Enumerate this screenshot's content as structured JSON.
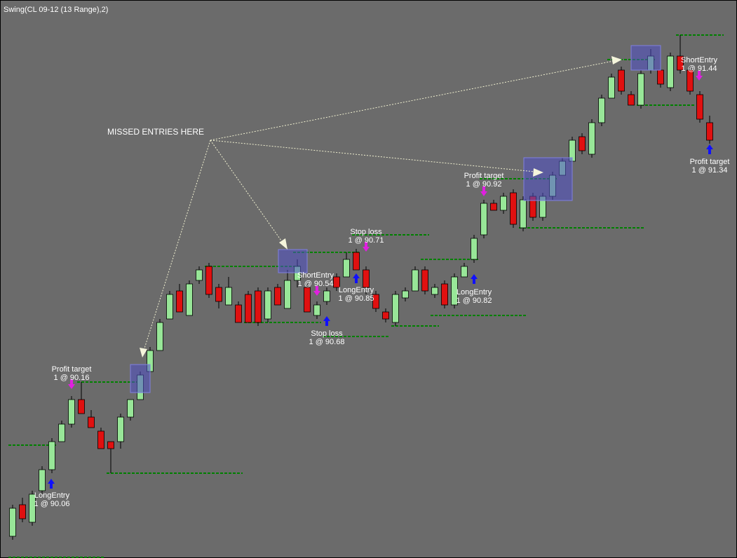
{
  "chart_data": {
    "type": "candlestick",
    "title": "Swing(CL 09-12 (13 Range),2)",
    "annotation": "MISSED ENTRIES HERE",
    "up_color": "#98e698",
    "down_color": "#e01010",
    "level_color": "#008000",
    "ylim": [
      89.968,
      91.56
    ],
    "open": [
      90.03,
      90.12,
      90.07,
      90.16,
      90.22,
      90.3,
      90.35,
      90.42,
      90.37,
      90.33,
      90.3,
      90.3,
      90.37,
      90.42,
      90.5,
      90.56,
      90.65,
      90.73,
      90.66,
      90.76,
      90.8,
      90.74,
      90.69,
      90.69,
      90.72,
      90.73,
      90.65,
      90.74,
      90.68,
      90.76,
      90.74,
      90.66,
      90.7,
      90.77,
      90.77,
      90.84,
      90.79,
      90.72,
      90.67,
      90.64,
      90.71,
      90.73,
      90.79,
      90.72,
      90.75,
      90.69,
      90.77,
      90.82,
      90.89,
      90.98,
      90.96,
      91.01,
      90.91,
      91.0,
      90.94,
      91.0,
      91.06,
      91.1,
      91.17,
      91.12,
      91.21,
      91.28,
      91.36,
      91.29,
      91.26,
      91.36,
      91.36,
      91.31,
      91.4,
      91.36,
      91.29,
      91.21
    ],
    "high": [
      90.12,
      90.14,
      90.16,
      90.23,
      90.31,
      90.36,
      90.43,
      90.47,
      90.39,
      90.34,
      90.3,
      90.38,
      90.42,
      90.5,
      90.57,
      90.65,
      90.73,
      90.75,
      90.76,
      90.8,
      90.81,
      90.75,
      90.77,
      90.7,
      90.73,
      90.74,
      90.74,
      90.75,
      90.79,
      90.82,
      90.75,
      90.7,
      90.74,
      90.78,
      90.84,
      90.85,
      90.8,
      90.73,
      90.68,
      90.73,
      90.74,
      90.8,
      90.8,
      90.75,
      90.76,
      90.78,
      90.81,
      90.89,
      90.99,
      90.99,
      91.01,
      91.02,
      91.0,
      91.01,
      91.01,
      91.07,
      91.11,
      91.17,
      91.18,
      91.22,
      91.29,
      91.35,
      91.37,
      91.3,
      91.36,
      91.42,
      91.37,
      91.41,
      91.46,
      91.37,
      91.3,
      91.23
    ],
    "low": [
      90.02,
      90.07,
      90.06,
      90.15,
      90.21,
      90.3,
      90.34,
      90.38,
      90.34,
      90.28,
      90.21,
      90.28,
      90.36,
      90.42,
      90.5,
      90.56,
      90.65,
      90.67,
      90.66,
      90.75,
      90.71,
      90.68,
      90.69,
      90.64,
      90.64,
      90.63,
      90.64,
      90.69,
      90.68,
      90.74,
      90.67,
      90.65,
      90.69,
      90.73,
      90.77,
      90.79,
      90.72,
      90.67,
      90.64,
      90.63,
      90.7,
      90.73,
      90.72,
      90.71,
      90.68,
      90.68,
      90.77,
      90.81,
      90.88,
      90.96,
      90.95,
      90.91,
      90.9,
      90.93,
      90.93,
      90.99,
      91.06,
      91.1,
      91.12,
      91.11,
      91.2,
      91.28,
      91.29,
      91.26,
      91.25,
      91.35,
      91.31,
      91.3,
      91.35,
      91.29,
      91.21,
      91.15
    ],
    "close": [
      90.11,
      90.08,
      90.15,
      90.22,
      90.3,
      90.35,
      90.42,
      90.38,
      90.34,
      90.28,
      90.28,
      90.37,
      90.42,
      90.49,
      90.56,
      90.64,
      90.72,
      90.67,
      90.75,
      90.79,
      90.72,
      90.7,
      90.74,
      90.64,
      90.64,
      90.64,
      90.73,
      90.69,
      90.76,
      90.8,
      90.67,
      90.69,
      90.73,
      90.74,
      90.82,
      90.79,
      90.74,
      90.68,
      90.65,
      90.72,
      90.73,
      90.79,
      90.73,
      90.74,
      90.69,
      90.77,
      90.8,
      90.88,
      90.98,
      90.96,
      91.0,
      90.92,
      90.99,
      90.94,
      91.0,
      91.06,
      91.1,
      91.16,
      91.13,
      91.21,
      91.28,
      91.34,
      91.3,
      91.26,
      91.35,
      91.4,
      91.32,
      91.4,
      91.36,
      91.3,
      91.22,
      91.16
    ],
    "levels": [
      {
        "value": 89.97,
        "from": 0,
        "to": 9
      },
      {
        "value": 90.29,
        "from": 0,
        "to": 4
      },
      {
        "value": 90.47,
        "from": 7,
        "to": 13
      },
      {
        "value": 90.21,
        "from": 10,
        "to": 23
      },
      {
        "value": 90.8,
        "from": 20,
        "to": 29
      },
      {
        "value": 90.64,
        "from": 24,
        "to": 31
      },
      {
        "value": 90.84,
        "from": 29,
        "to": 35
      },
      {
        "value": 90.6,
        "from": 32,
        "to": 38
      },
      {
        "value": 90.89,
        "from": 35,
        "to": 42
      },
      {
        "value": 90.63,
        "from": 39,
        "to": 43
      },
      {
        "value": 90.82,
        "from": 42,
        "to": 47
      },
      {
        "value": 90.66,
        "from": 43,
        "to": 52
      },
      {
        "value": 91.05,
        "from": 48,
        "to": 55
      },
      {
        "value": 90.91,
        "from": 52,
        "to": 64
      },
      {
        "value": 91.39,
        "from": 61,
        "to": 65
      },
      {
        "value": 91.26,
        "from": 64,
        "to": 69
      },
      {
        "value": 91.46,
        "from": 68,
        "to": 72
      }
    ],
    "orders": [
      {
        "name": "Profit target",
        "text": "1 @ 90.16"
      },
      {
        "name": "LongEntry",
        "text": "1 @ 90.06"
      },
      {
        "name": "ShortEntry",
        "text": "1 @ 90.54"
      },
      {
        "name": "Stop loss",
        "text": "1 @ 90.68"
      },
      {
        "name": "Stop loss",
        "text": "1 @ 90.71"
      },
      {
        "name": "LongEntry",
        "text": "1 @ 90.85"
      },
      {
        "name": "Profit target",
        "text": "1 @ 90.92"
      },
      {
        "name": "LongEntry",
        "text": "1 @ 90.82"
      },
      {
        "name": "ShortEntry",
        "text": "1 @ 91.44"
      },
      {
        "name": "Profit target",
        "text": "1 @ 91.34"
      }
    ]
  }
}
